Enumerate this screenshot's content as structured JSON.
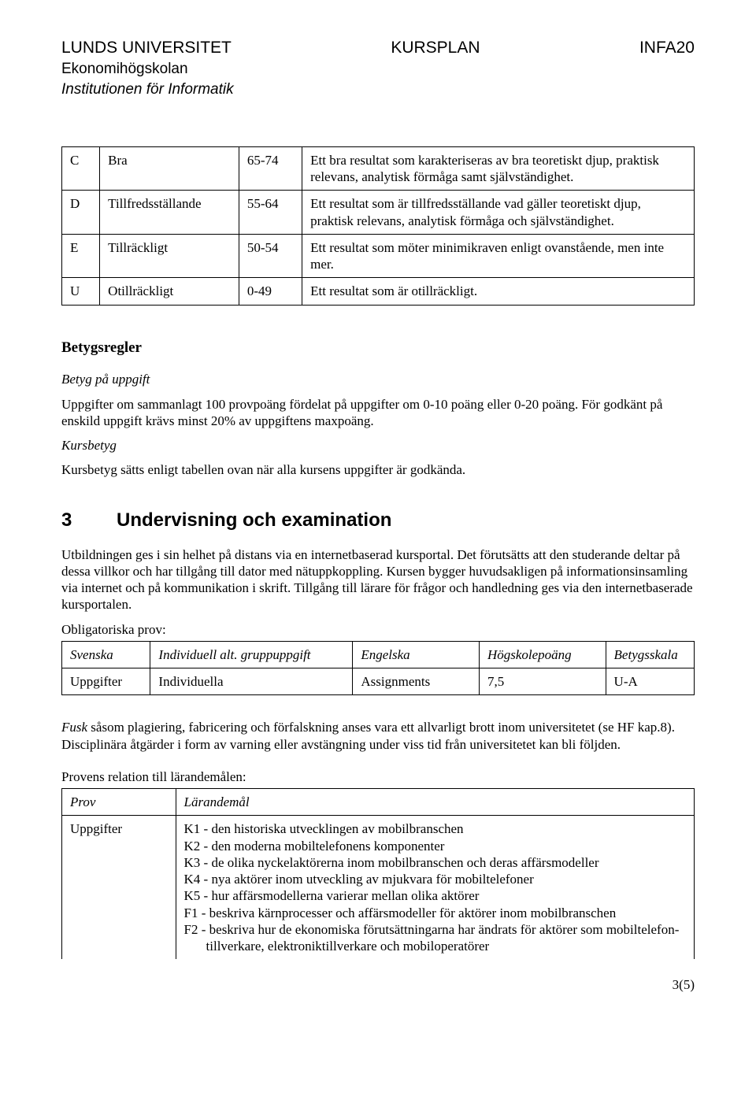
{
  "header": {
    "left": "LUNDS UNIVERSITET",
    "center": "KURSPLAN",
    "right": "INFA20",
    "sub1": "Ekonomihögskolan",
    "sub2": "Institutionen för Informatik"
  },
  "grades": [
    {
      "letter": "C",
      "name": "Bra",
      "range": "65-74",
      "desc": "Ett bra resultat som karakteriseras av bra teoretiskt djup, praktisk relevans, analytisk förmåga samt självständighet."
    },
    {
      "letter": "D",
      "name": "Tillfredsställande",
      "range": "55-64",
      "desc": "Ett resultat som är tillfredsställande vad gäller teoretiskt djup, praktisk relevans, analytisk förmåga och självständighet."
    },
    {
      "letter": "E",
      "name": "Tillräckligt",
      "range": "50-54",
      "desc": "Ett resultat som möter minimikraven enligt ovanstående, men inte mer."
    },
    {
      "letter": "U",
      "name": "Otillräckligt",
      "range": "0-49",
      "desc": "Ett resultat som är otillräckligt."
    }
  ],
  "betygsregler": {
    "title": "Betygsregler",
    "sub1": "Betyg på uppgift",
    "p1": "Uppgifter om sammanlagt 100 provpoäng fördelat på uppgifter om 0-10 poäng eller 0-20 poäng. För godkänt på enskild uppgift krävs minst 20% av uppgiftens maxpoäng.",
    "sub2": "Kursbetyg",
    "p2": "Kursbetyg sätts enligt tabellen ovan när alla kursens uppgifter är godkända."
  },
  "sec3": {
    "num": "3",
    "title": "Undervisning och examination",
    "p1": "Utbildningen ges i sin helhet på distans via en internetbaserad kursportal. Det förutsätts att den studerande deltar på dessa villkor och har tillgång till dator med nätuppkoppling. Kursen bygger huvudsakligen på informationsinsamling via internet och på kommunikation i skrift. Tillgång till lärare för frågor och handledning ges via den internetbaserade kursportalen.",
    "obl_label": "Obligatoriska prov:",
    "oblig_headers": [
      "Svenska",
      "Individuell alt. gruppuppgift",
      "Engelska",
      "Högskolepoäng",
      "Betygsskala"
    ],
    "oblig_row": [
      "Uppgifter",
      "Individuella",
      "Assignments",
      "7,5",
      "U-A"
    ]
  },
  "fusk": {
    "lead": "Fusk",
    "rest": " såsom plagiering, fabricering och förfalskning anses vara ett allvarligt brott inom universitetet (se HF kap.8). Disciplinära åtgärder i form av varning eller avstängning under viss tid från universitetet kan bli följden."
  },
  "relations": {
    "label": "Provens relation till lärandemålen:",
    "headers": [
      "Prov",
      "Lärandemål"
    ],
    "prov": "Uppgifter",
    "goals": [
      "K1 - den historiska utvecklingen av mobilbranschen",
      "K2 - den moderna mobiltelefonens komponenter",
      "K3 - de olika nyckelaktörerna inom mobilbranschen och deras affärsmodeller",
      "K4 - nya aktörer inom utveckling av mjukvara för mobiltelefoner",
      "K5 - hur affärsmodellerna varierar mellan olika aktörer",
      "F1 - beskriva kärnprocesser och affärsmodeller för aktörer inom mobilbranschen"
    ],
    "f2_main": "F2 - beskriva hur de ekonomiska förutsättningarna har ändrats för aktörer som mobiltelefon-",
    "f2_indent": "tillverkare, elektroniktillverkare och mobiloperatörer"
  },
  "page_num": "3(5)"
}
